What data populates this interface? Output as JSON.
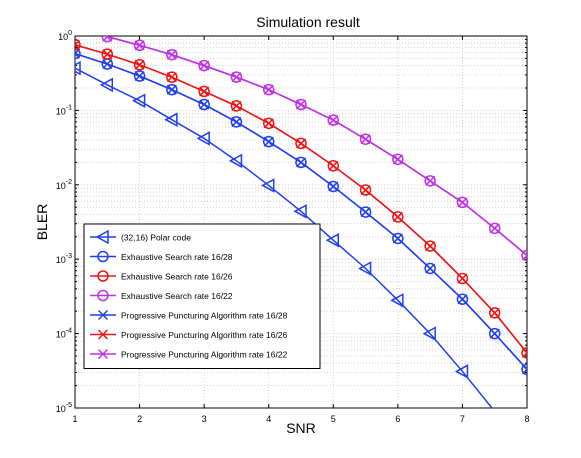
{
  "chart_data": {
    "type": "line",
    "title": "Simulation result",
    "xlabel": "SNR",
    "ylabel": "BLER",
    "xlim": [
      1,
      8
    ],
    "ylim": [
      1e-05,
      1
    ],
    "yscale": "log",
    "grid": "on (dotted, with minor log grid)",
    "legend_position": "bottom-left",
    "x_ticks": [
      "1",
      "2",
      "3",
      "4",
      "5",
      "6",
      "7",
      "8"
    ],
    "y_ticks": [
      {
        "base": "10",
        "exp": "0"
      },
      {
        "base": "10",
        "exp": "-1"
      },
      {
        "base": "10",
        "exp": "-2"
      },
      {
        "base": "10",
        "exp": "-3"
      },
      {
        "base": "10",
        "exp": "-4"
      },
      {
        "base": "10",
        "exp": "-5"
      }
    ],
    "series": [
      {
        "name": "(32,16) Polar code",
        "color": "#1f3ff0",
        "marker": "triangle-left",
        "x": [
          1,
          1.5,
          2,
          2.5,
          3,
          3.5,
          4,
          4.5,
          5,
          5.5,
          6,
          6.5,
          7,
          7.5
        ],
        "values": [
          0.37,
          0.22,
          0.135,
          0.075,
          0.042,
          0.021,
          0.0098,
          0.0044,
          0.0018,
          0.00075,
          0.00028,
          0.0001,
          3.1e-05,
          9e-06
        ]
      },
      {
        "name": "Exhaustive Search rate 16/28",
        "color": "#1f3ff0",
        "marker": "circle",
        "x": [
          1,
          1.5,
          2,
          2.5,
          3,
          3.5,
          4,
          4.5,
          5,
          5.5,
          6,
          6.5,
          7,
          7.5,
          8
        ],
        "values": [
          0.58,
          0.42,
          0.29,
          0.19,
          0.12,
          0.07,
          0.038,
          0.02,
          0.0095,
          0.0043,
          0.0019,
          0.00075,
          0.00029,
          0.0001,
          3.3e-05
        ]
      },
      {
        "name": "Exhaustive Search rate 16/26",
        "color": "#f01414",
        "marker": "circle",
        "x": [
          1,
          1.5,
          2,
          2.5,
          3,
          3.5,
          4,
          4.5,
          5,
          5.5,
          6,
          6.5,
          7,
          7.5,
          8
        ],
        "values": [
          0.76,
          0.57,
          0.41,
          0.28,
          0.18,
          0.115,
          0.067,
          0.036,
          0.018,
          0.0085,
          0.0037,
          0.0015,
          0.00055,
          0.00019,
          5.5e-05
        ]
      },
      {
        "name": "Exhaustive Search rate 16/22",
        "color": "#c030e8",
        "marker": "circle",
        "x": [
          1.5,
          2,
          2.5,
          3,
          3.5,
          4,
          4.5,
          5,
          5.5,
          6,
          6.5,
          7,
          7.5,
          8
        ],
        "values": [
          0.98,
          0.75,
          0.56,
          0.4,
          0.28,
          0.19,
          0.12,
          0.074,
          0.041,
          0.022,
          0.0113,
          0.0058,
          0.0026,
          0.00112
        ]
      },
      {
        "name": "Progressive Puncturing Algorithm rate 16/28",
        "color": "#1f3ff0",
        "marker": "x",
        "x": [
          1,
          1.5,
          2,
          2.5,
          3,
          3.5,
          4,
          4.5,
          5,
          5.5,
          6,
          6.5,
          7,
          7.5,
          8
        ],
        "values": [
          0.58,
          0.42,
          0.29,
          0.19,
          0.12,
          0.07,
          0.038,
          0.02,
          0.0095,
          0.0043,
          0.0019,
          0.00075,
          0.00029,
          0.0001,
          3.3e-05
        ]
      },
      {
        "name": "Progressive Puncturing Algorithm rate 16/26",
        "color": "#f01414",
        "marker": "x",
        "x": [
          1,
          1.5,
          2,
          2.5,
          3,
          3.5,
          4,
          4.5,
          5,
          5.5,
          6,
          6.5,
          7,
          7.5,
          8
        ],
        "values": [
          0.76,
          0.57,
          0.41,
          0.28,
          0.18,
          0.115,
          0.067,
          0.036,
          0.018,
          0.0085,
          0.0037,
          0.0015,
          0.00055,
          0.00019,
          5.5e-05
        ]
      },
      {
        "name": "Progressive Puncturing Algorithm rate 16/22",
        "color": "#c030e8",
        "marker": "x",
        "x": [
          1.5,
          2,
          2.5,
          3,
          3.5,
          4,
          4.5,
          5,
          5.5,
          6,
          6.5,
          7,
          7.5,
          8
        ],
        "values": [
          0.98,
          0.75,
          0.56,
          0.4,
          0.28,
          0.19,
          0.12,
          0.074,
          0.041,
          0.022,
          0.0113,
          0.0058,
          0.0026,
          0.00112
        ]
      }
    ]
  }
}
